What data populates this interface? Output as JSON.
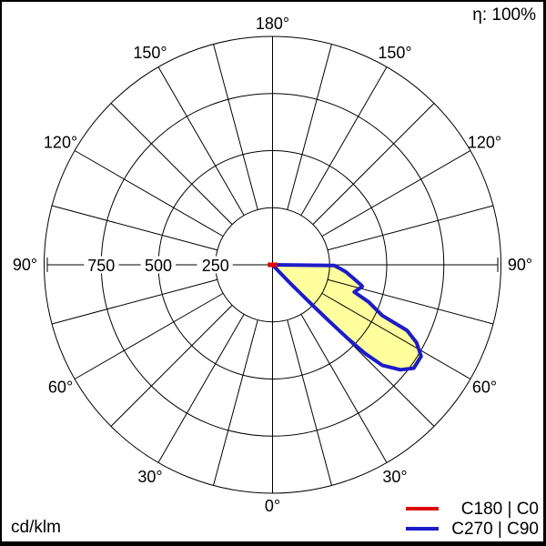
{
  "diagram": {
    "efficiency_label": "η: 100%",
    "unit_label": "cd/klm"
  },
  "legend": {
    "items": [
      {
        "label": "C180 | C0",
        "color": "#dd0808"
      },
      {
        "label": "C270 | C90",
        "color": "#1c1cc8"
      }
    ]
  },
  "chart_data": {
    "type": "polar-photometric",
    "unit": "cd/klm",
    "efficiency_percent": 100,
    "angle_labels": [
      "0°",
      "30°",
      "60°",
      "90°",
      "120°",
      "150°",
      "180°"
    ],
    "angle_grid_step_deg": 15,
    "radial_ticks": [
      250,
      500,
      750,
      1000
    ],
    "radial_tick_labels": [
      "750",
      "500",
      "250"
    ],
    "grid_color": "#000000",
    "max_intensity_cd_klm": 766,
    "max_intensity_gamma_deg": 56,
    "series": [
      {
        "name": "C180 | C0",
        "color": "#dd0808",
        "fill": null,
        "points_gamma_cd": [
          [
            -90,
            21
          ],
          [
            90,
            22
          ]
        ]
      },
      {
        "name": "C270 | C90",
        "color": "#1c1cc8",
        "fill": "#ffff9e",
        "points_gamma_cd": [
          [
            90,
            0
          ],
          [
            89.3,
            270
          ],
          [
            86.5,
            300
          ],
          [
            84.4,
            323
          ],
          [
            81,
            354
          ],
          [
            77,
            400
          ],
          [
            76.4,
            404
          ],
          [
            71.6,
            377
          ],
          [
            68.9,
            451
          ],
          [
            65.2,
            529
          ],
          [
            64,
            655
          ],
          [
            61.6,
            717
          ],
          [
            58.4,
            764
          ],
          [
            53.8,
            766
          ],
          [
            50.6,
            724
          ],
          [
            47.5,
            651
          ],
          [
            46.2,
            560
          ],
          [
            45.6,
            460
          ],
          [
            45.2,
            355
          ],
          [
            44.8,
            258
          ],
          [
            44.3,
            170
          ],
          [
            43.8,
            98
          ],
          [
            43.4,
            45
          ],
          [
            43.2,
            0
          ]
        ]
      }
    ]
  }
}
